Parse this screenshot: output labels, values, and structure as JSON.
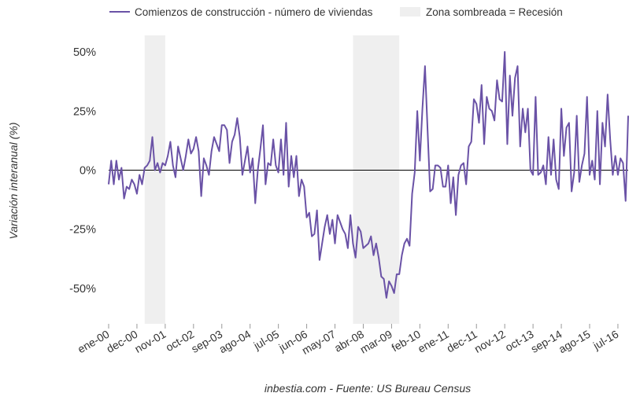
{
  "legend": {
    "series_label": "Comienzos de construcción - número de viviendas",
    "shade_label": "Zona sombreada = Recesión"
  },
  "source_caption": "inbestia.com - Fuente: US Bureau Census",
  "colors": {
    "line": "#6a52a6",
    "recession": "#efefef",
    "zero_line": "#000000",
    "text": "#333333"
  },
  "chart_data": {
    "type": "line",
    "title": "",
    "xlabel": "",
    "ylabel": "Variación interanual (%)",
    "ylim": [
      -65,
      57
    ],
    "grid": false,
    "legend_position": "top",
    "y_ticks": [
      {
        "value": 50,
        "label": "50%"
      },
      {
        "value": 25,
        "label": "25%"
      },
      {
        "value": 0,
        "label": "0%"
      },
      {
        "value": -25,
        "label": "-25%"
      },
      {
        "value": -50,
        "label": "-50%"
      }
    ],
    "x_ticks": [
      {
        "date": "2000-01",
        "label": "ene-00"
      },
      {
        "date": "2000-12",
        "label": "dec-00"
      },
      {
        "date": "2001-11",
        "label": "nov-01"
      },
      {
        "date": "2002-10",
        "label": "oct-02"
      },
      {
        "date": "2003-09",
        "label": "sep-03"
      },
      {
        "date": "2004-08",
        "label": "ago-04"
      },
      {
        "date": "2005-07",
        "label": "jul-05"
      },
      {
        "date": "2006-06",
        "label": "jun-06"
      },
      {
        "date": "2007-05",
        "label": "may-07"
      },
      {
        "date": "2008-04",
        "label": "abr-08"
      },
      {
        "date": "2009-03",
        "label": "mar-09"
      },
      {
        "date": "2010-02",
        "label": "feb-10"
      },
      {
        "date": "2011-01",
        "label": "ene-11"
      },
      {
        "date": "2011-12",
        "label": "dec-11"
      },
      {
        "date": "2012-11",
        "label": "nov-12"
      },
      {
        "date": "2013-10",
        "label": "oct-13"
      },
      {
        "date": "2014-09",
        "label": "sep-14"
      },
      {
        "date": "2015-08",
        "label": "ago-15"
      },
      {
        "date": "2016-07",
        "label": "jul-16"
      }
    ],
    "x_range": [
      "2000-01",
      "2016-11"
    ],
    "recessions": [
      {
        "start": "2001-03",
        "end": "2001-11"
      },
      {
        "start": "2007-12",
        "end": "2009-06"
      }
    ],
    "series": [
      {
        "name": "Comienzos de construcción - número de viviendas",
        "x": [
          "2000-01",
          "2000-02",
          "2000-03",
          "2000-04",
          "2000-05",
          "2000-06",
          "2000-07",
          "2000-08",
          "2000-09",
          "2000-10",
          "2000-11",
          "2000-12",
          "2001-01",
          "2001-02",
          "2001-03",
          "2001-04",
          "2001-05",
          "2001-06",
          "2001-07",
          "2001-08",
          "2001-09",
          "2001-10",
          "2001-11",
          "2001-12",
          "2002-01",
          "2002-02",
          "2002-03",
          "2002-04",
          "2002-05",
          "2002-06",
          "2002-07",
          "2002-08",
          "2002-09",
          "2002-10",
          "2002-11",
          "2002-12",
          "2003-01",
          "2003-02",
          "2003-03",
          "2003-04",
          "2003-05",
          "2003-06",
          "2003-07",
          "2003-08",
          "2003-09",
          "2003-10",
          "2003-11",
          "2003-12",
          "2004-01",
          "2004-02",
          "2004-03",
          "2004-04",
          "2004-05",
          "2004-06",
          "2004-07",
          "2004-08",
          "2004-09",
          "2004-10",
          "2004-11",
          "2004-12",
          "2005-01",
          "2005-02",
          "2005-03",
          "2005-04",
          "2005-05",
          "2005-06",
          "2005-07",
          "2005-08",
          "2005-09",
          "2005-10",
          "2005-11",
          "2005-12",
          "2006-01",
          "2006-02",
          "2006-03",
          "2006-04",
          "2006-05",
          "2006-06",
          "2006-07",
          "2006-08",
          "2006-09",
          "2006-10",
          "2006-11",
          "2006-12",
          "2007-01",
          "2007-02",
          "2007-03",
          "2007-04",
          "2007-05",
          "2007-06",
          "2007-07",
          "2007-08",
          "2007-09",
          "2007-10",
          "2007-11",
          "2007-12",
          "2008-01",
          "2008-02",
          "2008-03",
          "2008-04",
          "2008-05",
          "2008-06",
          "2008-07",
          "2008-08",
          "2008-09",
          "2008-10",
          "2008-11",
          "2008-12",
          "2009-01",
          "2009-02",
          "2009-03",
          "2009-04",
          "2009-05",
          "2009-06",
          "2009-07",
          "2009-08",
          "2009-09",
          "2009-10",
          "2009-11",
          "2009-12",
          "2010-01",
          "2010-02",
          "2010-03",
          "2010-04",
          "2010-05",
          "2010-06",
          "2010-07",
          "2010-08",
          "2010-09",
          "2010-10",
          "2010-11",
          "2010-12",
          "2011-01",
          "2011-02",
          "2011-03",
          "2011-04",
          "2011-05",
          "2011-06",
          "2011-07",
          "2011-08",
          "2011-09",
          "2011-10",
          "2011-11",
          "2011-12",
          "2012-01",
          "2012-02",
          "2012-03",
          "2012-04",
          "2012-05",
          "2012-06",
          "2012-07",
          "2012-08",
          "2012-09",
          "2012-10",
          "2012-11",
          "2012-12",
          "2013-01",
          "2013-02",
          "2013-03",
          "2013-04",
          "2013-05",
          "2013-06",
          "2013-07",
          "2013-08",
          "2013-09",
          "2013-10",
          "2013-11",
          "2013-12",
          "2014-01",
          "2014-02",
          "2014-03",
          "2014-04",
          "2014-05",
          "2014-06",
          "2014-07",
          "2014-08",
          "2014-09",
          "2014-10",
          "2014-11",
          "2014-12",
          "2015-01",
          "2015-02",
          "2015-03",
          "2015-04",
          "2015-05",
          "2015-06",
          "2015-07",
          "2015-08",
          "2015-09",
          "2015-10",
          "2015-11",
          "2015-12",
          "2016-01",
          "2016-02",
          "2016-03",
          "2016-04",
          "2016-05",
          "2016-06",
          "2016-07",
          "2016-08",
          "2016-09",
          "2016-10",
          "2016-11"
        ],
        "y": [
          -6,
          4,
          -6,
          4,
          -4,
          1,
          -12,
          -7,
          -8,
          -4,
          -6,
          -10,
          -2,
          -6,
          1,
          2,
          4,
          14,
          0,
          3,
          -1,
          3,
          2,
          6,
          12,
          2,
          -3,
          10,
          5,
          0,
          6,
          13,
          7,
          9,
          14,
          8,
          -11,
          5,
          2,
          -2,
          8,
          14,
          11,
          8,
          19,
          19,
          17,
          3,
          12,
          15,
          22,
          14,
          -2,
          4,
          10,
          -1,
          5,
          -14,
          0,
          9,
          19,
          -6,
          3,
          2,
          13,
          2,
          -1,
          13,
          -2,
          20,
          -7,
          6,
          -3,
          6,
          -11,
          -4,
          -7,
          -20,
          -18,
          -28,
          -27,
          -17,
          -38,
          -31,
          -24,
          -19,
          -27,
          -21,
          -31,
          -19,
          -22,
          -25,
          -27,
          -33,
          -19,
          -31,
          -37,
          -24,
          -26,
          -33,
          -32,
          -31,
          -28,
          -36,
          -31,
          -37,
          -45,
          -46,
          -54,
          -47,
          -49,
          -52,
          -44,
          -44,
          -36,
          -31,
          -29,
          -32,
          -10,
          -1,
          25,
          4,
          26,
          44,
          17,
          -9,
          -8,
          2,
          2,
          1,
          -7,
          -7,
          2,
          -14,
          -3,
          -19,
          -2,
          2,
          3,
          -6,
          10,
          12,
          30,
          28,
          20,
          36,
          11,
          31,
          26,
          25,
          21,
          38,
          30,
          29,
          50,
          11,
          40,
          23,
          39,
          44,
          10,
          26,
          16,
          26,
          0,
          -2,
          31,
          -2,
          -1,
          2,
          -6,
          14,
          -2,
          13,
          -4,
          -8,
          26,
          6,
          18,
          20,
          -9,
          -1,
          23,
          -5,
          2,
          7,
          31,
          -2,
          4,
          -4,
          25,
          -6,
          20,
          10,
          32,
          13,
          -2,
          6,
          -2,
          5,
          3,
          -13,
          23
        ]
      }
    ]
  }
}
